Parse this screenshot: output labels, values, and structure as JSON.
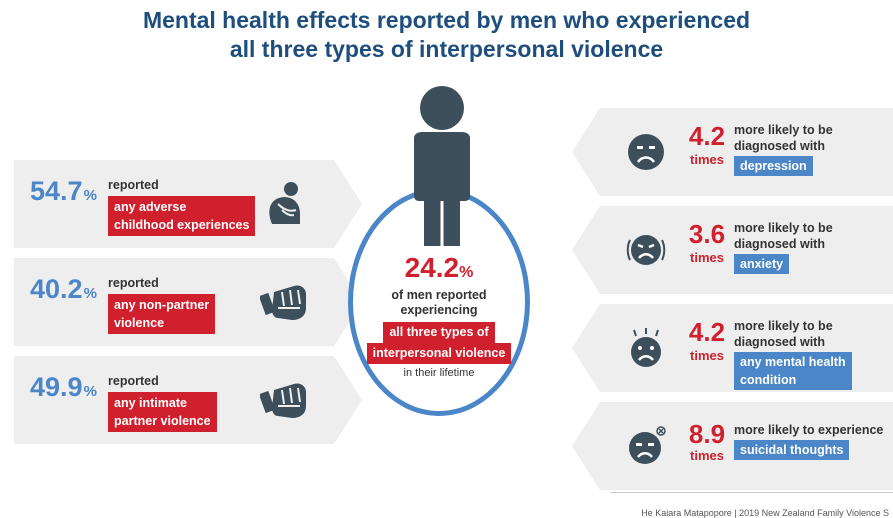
{
  "title": {
    "line1": "Mental health effects reported by men who experienced",
    "line2": "all three types of interpersonal violence"
  },
  "colors": {
    "title": "#1d4e7e",
    "blue": "#4a86c8",
    "red": "#d0202e",
    "card": "#eeeeee",
    "icon": "#3e4f5c"
  },
  "left_cards": [
    {
      "value": "54.7",
      "unit": "%",
      "reported": "reported",
      "tag_line1": "any adverse",
      "tag_line2": "childhood experiences",
      "icon": "sad-person-icon"
    },
    {
      "value": "40.2",
      "unit": "%",
      "reported": "reported",
      "tag_line1": "any non-partner",
      "tag_line2": "violence",
      "icon": "fist-icon"
    },
    {
      "value": "49.9",
      "unit": "%",
      "reported": "reported",
      "tag_line1": "any intimate",
      "tag_line2": "partner violence",
      "icon": "fist-icon"
    }
  ],
  "center": {
    "value": "24.2",
    "unit": "%",
    "line1": "of men reported",
    "line2": "experiencing",
    "tag_line1": "all three types of",
    "tag_line2": "interpersonal violence",
    "end": "in their lifetime",
    "icon": "person-icon"
  },
  "right_cards": [
    {
      "value": "4.2",
      "times": "times",
      "text_line1": "more likely to be",
      "text_line2": "diagnosed with",
      "tag_line1": "depression",
      "tag_line2": "",
      "icon": "sad-face-icon"
    },
    {
      "value": "3.6",
      "times": "times",
      "text_line1": "more likely to be",
      "text_line2": "diagnosed with",
      "tag_line1": "anxiety",
      "tag_line2": "",
      "icon": "anxious-face-icon"
    },
    {
      "value": "4.2",
      "times": "times",
      "text_line1": "more likely to be",
      "text_line2": "diagnosed with",
      "tag_line1": "any mental health",
      "tag_line2": "condition",
      "icon": "distressed-face-icon"
    },
    {
      "value": "8.9",
      "times": "times",
      "text_line1": "more likely to experience",
      "text_line2": "",
      "tag_line1": "suicidal thoughts",
      "tag_line2": "",
      "icon": "dead-face-icon"
    }
  ],
  "footer": "He Kaiara Matapopore | 2019 New Zealand Family Violence S"
}
